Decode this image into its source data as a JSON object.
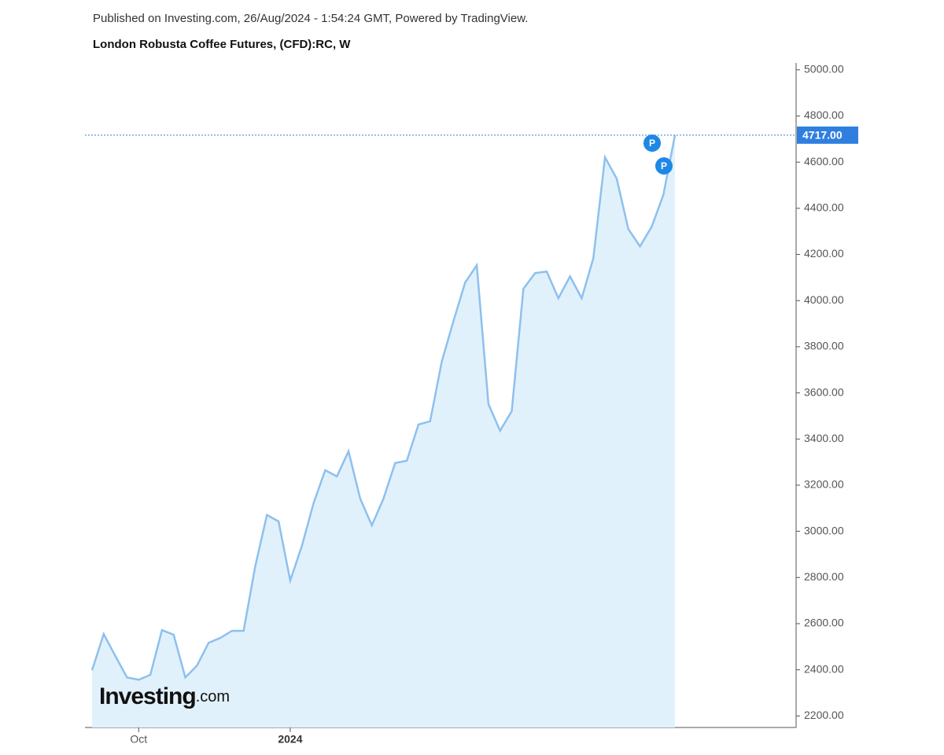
{
  "header": {
    "published": "Published on Investing.com, 26/Aug/2024 - 1:54:24 GMT, Powered by TradingView.",
    "logo": "Investing",
    "logo_suffix": ".com"
  },
  "chart_data": {
    "type": "area",
    "title": "London Robusta Coffee Futures, (CFD):RC, W",
    "categories": [
      null,
      null,
      null,
      null,
      "Oct",
      null,
      null,
      null,
      null,
      null,
      null,
      null,
      null,
      null,
      null,
      null,
      null,
      "2024",
      null,
      null,
      null,
      null,
      null,
      null,
      null,
      null,
      null,
      null,
      null,
      null,
      null,
      null,
      null,
      null,
      null,
      null,
      null,
      null,
      null,
      null,
      null,
      null,
      null,
      null,
      null,
      null,
      null,
      null,
      null,
      null,
      null
    ],
    "series": [
      {
        "name": "RC",
        "color": "#8ec0ee",
        "fill": "#e1f1fb",
        "values": [
          2398,
          2555,
          2460,
          2367,
          2357,
          2378,
          2572,
          2552,
          2367,
          2418,
          2517,
          2538,
          2569,
          2569,
          2849,
          3071,
          3043,
          2787,
          2937,
          3122,
          3265,
          3238,
          3347,
          3142,
          3026,
          3142,
          3296,
          3306,
          3463,
          3477,
          3736,
          3911,
          4078,
          4153,
          3552,
          3436,
          3521,
          4051,
          4119,
          4126,
          4010,
          4105,
          4010,
          4184,
          4621,
          4529,
          4310,
          4235,
          4320,
          4457,
          4717
        ],
        "value_labels": [
          null,
          null,
          null,
          null,
          null,
          null,
          null,
          null,
          null,
          null,
          null,
          null,
          null,
          null,
          null,
          null,
          null,
          null,
          null,
          null,
          null,
          null,
          null,
          null,
          null,
          null,
          null,
          null,
          null,
          null,
          null,
          null,
          null,
          null,
          null,
          null,
          null,
          null,
          null,
          null,
          null,
          null,
          null,
          null,
          null,
          null,
          null,
          null,
          null,
          null,
          "4717.00"
        ]
      }
    ],
    "annotations": [
      "P",
      "P"
    ],
    "ylim": [
      2150,
      5030
    ],
    "yticks": [
      {
        "value": 2200,
        "label": "2200.00"
      },
      {
        "value": 2400,
        "label": "2400.00"
      },
      {
        "value": 2600,
        "label": "2600.00"
      },
      {
        "value": 2800,
        "label": "2800.00"
      },
      {
        "value": 3000,
        "label": "3000.00"
      },
      {
        "value": 3200,
        "label": "3200.00"
      },
      {
        "value": 3400,
        "label": "3400.00"
      },
      {
        "value": 3600,
        "label": "3600.00"
      },
      {
        "value": 3800,
        "label": "3800.00"
      },
      {
        "value": 4000,
        "label": "4000.00"
      },
      {
        "value": 4200,
        "label": "4200.00"
      },
      {
        "value": 4400,
        "label": "4400.00"
      },
      {
        "value": 4600,
        "label": "4600.00"
      },
      {
        "value": 4800,
        "label": "4800.00"
      },
      {
        "value": 5000,
        "label": "5000.00"
      }
    ],
    "grid": false
  }
}
